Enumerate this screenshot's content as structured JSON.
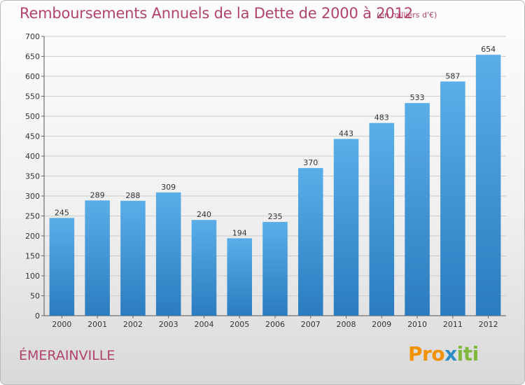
{
  "header": {
    "title": "Remboursements Annuels de la Dette de 2000 à 2012",
    "subtitle": "(en milliers d'€)"
  },
  "footer": {
    "place": "ÉMERAINVILLE",
    "brand_part1": "Pro",
    "brand_part2": "x",
    "brand_part3": "iti"
  },
  "colors": {
    "bar_top": "#5aaee8",
    "bar_bottom": "#2a7cbf",
    "title": "#b0436e",
    "grid": "#cccccc"
  },
  "chart_data": {
    "type": "bar",
    "title": "Remboursements Annuels de la Dette de 2000 à 2012",
    "subtitle": "(en milliers d'€)",
    "xlabel": "",
    "ylabel": "",
    "ylim": [
      0,
      700
    ],
    "yticks": [
      0,
      50,
      100,
      150,
      200,
      250,
      300,
      350,
      400,
      450,
      500,
      550,
      600,
      650,
      700
    ],
    "grid": true,
    "categories": [
      "2000",
      "2001",
      "2002",
      "2003",
      "2004",
      "2005",
      "2006",
      "2007",
      "2008",
      "2009",
      "2010",
      "2011",
      "2012"
    ],
    "values": [
      245,
      289,
      288,
      309,
      240,
      194,
      235,
      370,
      443,
      483,
      533,
      587,
      654
    ]
  }
}
